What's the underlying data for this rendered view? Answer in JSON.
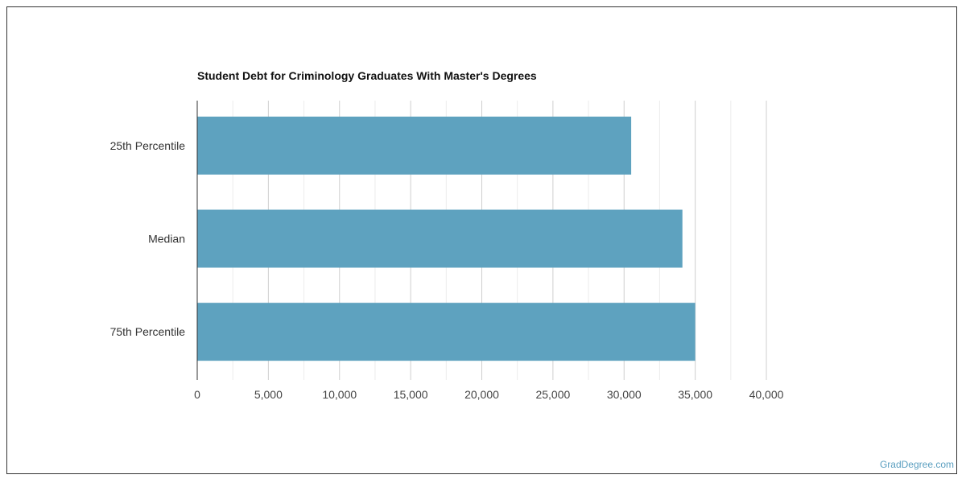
{
  "chart_data": {
    "type": "bar",
    "orientation": "horizontal",
    "title": "Student Debt for Criminology Graduates With Master's Degrees",
    "categories": [
      "25th Percentile",
      "Median",
      "75th Percentile"
    ],
    "values": [
      30500,
      34100,
      35000
    ],
    "xlabel": "",
    "ylabel": "",
    "xlim": [
      0,
      40000
    ],
    "xticks": [
      0,
      5000,
      10000,
      15000,
      20000,
      25000,
      30000,
      35000,
      40000
    ],
    "xtick_labels": [
      "0",
      "5,000",
      "10,000",
      "15,000",
      "20,000",
      "25,000",
      "30,000",
      "35,000",
      "40,000"
    ],
    "grid": true,
    "bar_color": "#5ea2bf"
  },
  "credit": "GradDegree.com"
}
